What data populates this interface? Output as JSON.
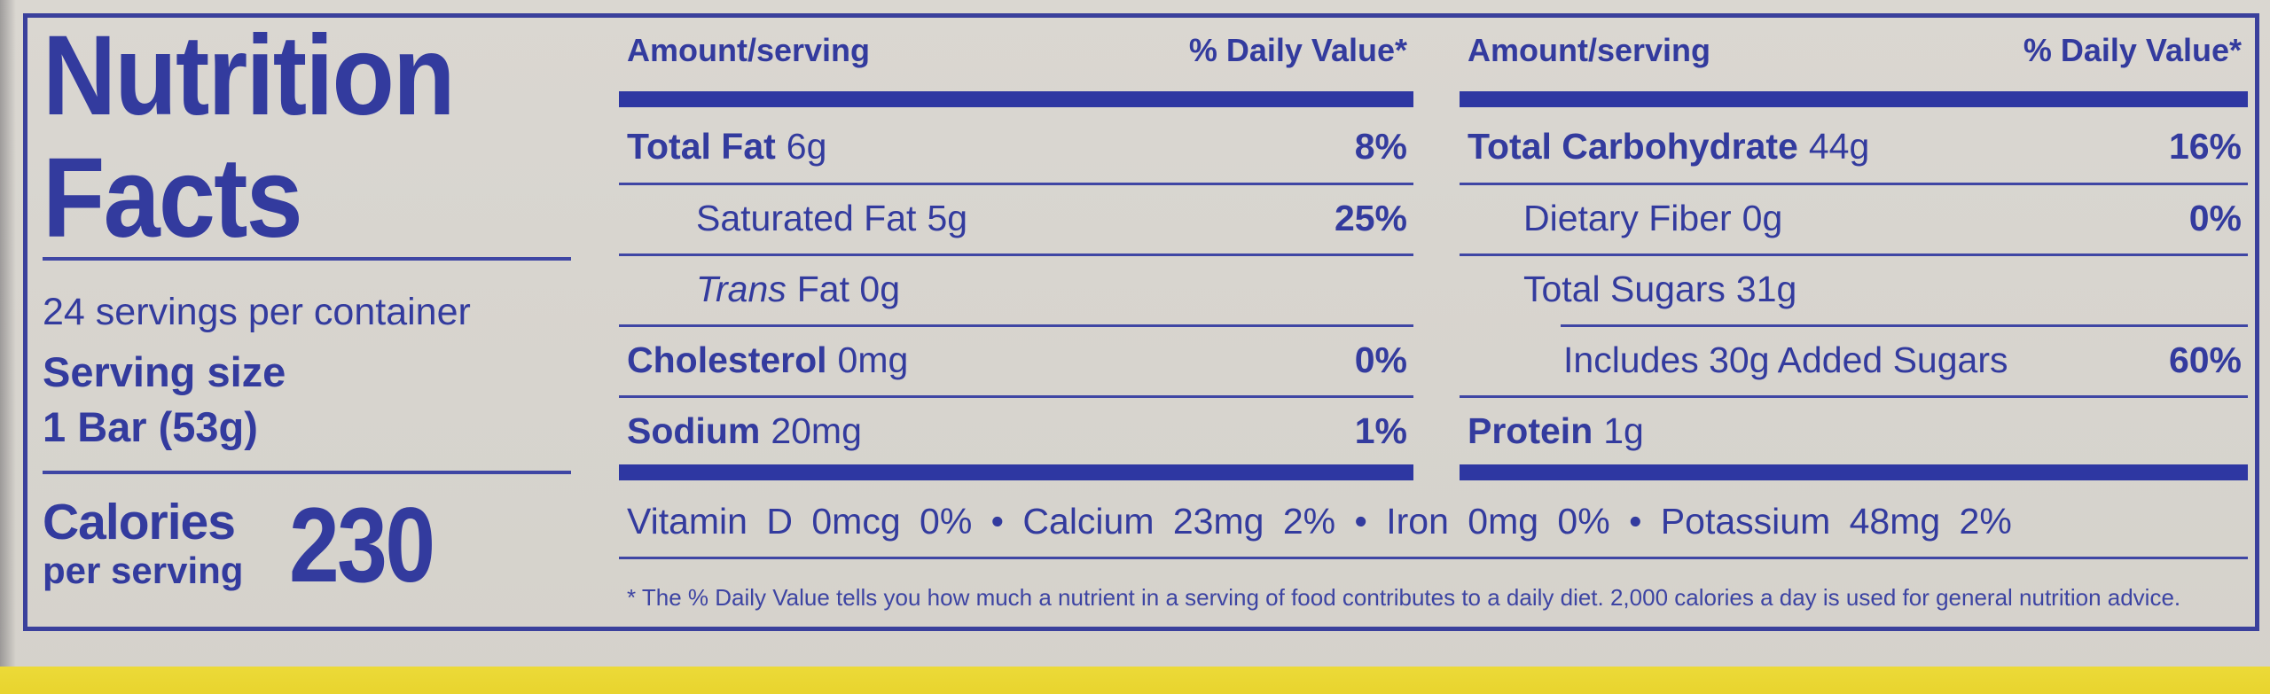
{
  "colors": {
    "text_blue": "#333b9e",
    "border_blue": "#3a409c",
    "background_beige": "#d7d4ce",
    "yellow_band": "#e9d633"
  },
  "left_panel": {
    "title_line1": "Nutrition",
    "title_line2": "Facts",
    "servings_per_container": "24 servings per container",
    "serving_size_label": "Serving size",
    "serving_size_value": "1 Bar (53g)",
    "calories_label": "Calories",
    "calories_sublabel": "per serving",
    "calories_value": "230"
  },
  "columns_header": {
    "amount": "Amount/serving",
    "daily_value": "% Daily Value*"
  },
  "fat_column": {
    "rows": [
      {
        "name": "Total Fat",
        "amount": "6g",
        "dv": "8%"
      },
      {
        "name": "Saturated Fat",
        "amount": "5g",
        "dv": "25%"
      },
      {
        "name": "Trans",
        "amount": "Fat 0g",
        "dv": ""
      },
      {
        "name": "Cholesterol",
        "amount": "0mg",
        "dv": "0%"
      },
      {
        "name": "Sodium",
        "amount": "20mg",
        "dv": "1%"
      }
    ]
  },
  "carb_column": {
    "rows": [
      {
        "name": "Total Carbohydrate",
        "amount": "44g",
        "dv": "16%"
      },
      {
        "name": "Dietary Fiber",
        "amount": "0g",
        "dv": "0%"
      },
      {
        "name": "Total Sugars",
        "amount": "31g",
        "dv": ""
      },
      {
        "name": "Includes 30g Added Sugars",
        "amount": "",
        "dv": "60%"
      },
      {
        "name": "Protein",
        "amount": "1g",
        "dv": ""
      }
    ]
  },
  "micronutrients_line": "Vitamin D 0mcg 0%  •  Calcium 23mg 2%  •  Iron 0mg 0%  •  Potassium 48mg 2%",
  "footnote": "* The % Daily Value tells you how much a nutrient in a serving of food contributes to a daily diet. 2,000 calories a day is used for general nutrition advice."
}
